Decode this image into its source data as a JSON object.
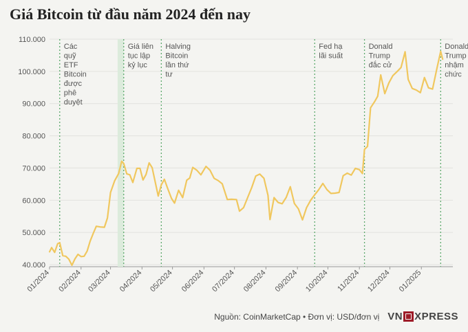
{
  "title": "Giá Bitcoin từ đầu năm 2024 đến nay",
  "footer": {
    "source": "Nguồn: CoinMarketCap • Đơn vị: USD/đơn vị",
    "logo_left": "VN",
    "logo_right": "XPRESS"
  },
  "colors": {
    "line": "#f0c75e",
    "marker": "#5aa86a",
    "band": "#dcebdc",
    "grid": "#e2e2de"
  },
  "chart_data": {
    "type": "line",
    "title": "Giá Bitcoin từ đầu năm 2024 đến nay",
    "ylim": [
      40000,
      110000
    ],
    "y_ticks": [
      40000,
      50000,
      60000,
      70000,
      80000,
      90000,
      100000,
      110000
    ],
    "y_tick_labels": [
      "40.000",
      "50.000",
      "60.000",
      "70.000",
      "80.000",
      "90.000",
      "100.000",
      "110.000"
    ],
    "x_range": [
      "2024-01-01",
      "2025-02-01"
    ],
    "x_ticks": [
      "2024-01-01",
      "2024-02-01",
      "2024-03-01",
      "2024-04-01",
      "2024-05-01",
      "2024-06-01",
      "2024-07-01",
      "2024-08-01",
      "2024-09-01",
      "2024-10-01",
      "2024-11-01",
      "2024-12-01",
      "2025-01-01"
    ],
    "x_tick_labels": [
      "01/2024",
      "02/2024",
      "03/2024",
      "04/2024",
      "05/2024",
      "06/2024",
      "07/2024",
      "08/2024",
      "09/2024",
      "10/2024",
      "11/2024",
      "12/2024",
      "01/2025"
    ],
    "grid": "horizontal",
    "series": [
      {
        "x": [
          "2024-01-01",
          "2024-01-03",
          "2024-01-06",
          "2024-01-09",
          "2024-01-11",
          "2024-01-14",
          "2024-01-17",
          "2024-01-20",
          "2024-01-23",
          "2024-01-26",
          "2024-01-29",
          "2024-02-01",
          "2024-02-04",
          "2024-02-07",
          "2024-02-10",
          "2024-02-13",
          "2024-02-16",
          "2024-02-20",
          "2024-02-24",
          "2024-02-27",
          "2024-03-01",
          "2024-03-05",
          "2024-03-09",
          "2024-03-12",
          "2024-03-14",
          "2024-03-17",
          "2024-03-20",
          "2024-03-23",
          "2024-03-27",
          "2024-03-30",
          "2024-04-02",
          "2024-04-05",
          "2024-04-08",
          "2024-04-11",
          "2024-04-14",
          "2024-04-17",
          "2024-04-20",
          "2024-04-23",
          "2024-04-26",
          "2024-04-30",
          "2024-05-03",
          "2024-05-07",
          "2024-05-11",
          "2024-05-15",
          "2024-05-18",
          "2024-05-21",
          "2024-05-25",
          "2024-05-29",
          "2024-06-03",
          "2024-06-07",
          "2024-06-11",
          "2024-06-15",
          "2024-06-19",
          "2024-06-24",
          "2024-06-28",
          "2024-07-03",
          "2024-07-06",
          "2024-07-10",
          "2024-07-14",
          "2024-07-18",
          "2024-07-22",
          "2024-07-26",
          "2024-07-30",
          "2024-08-03",
          "2024-08-05",
          "2024-08-09",
          "2024-08-13",
          "2024-08-17",
          "2024-08-21",
          "2024-08-25",
          "2024-08-29",
          "2024-09-02",
          "2024-09-06",
          "2024-09-10",
          "2024-09-14",
          "2024-09-18",
          "2024-09-22",
          "2024-09-26",
          "2024-09-30",
          "2024-10-04",
          "2024-10-08",
          "2024-10-12",
          "2024-10-16",
          "2024-10-20",
          "2024-10-24",
          "2024-10-28",
          "2024-11-01",
          "2024-11-04",
          "2024-11-06",
          "2024-11-09",
          "2024-11-12",
          "2024-11-16",
          "2024-11-19",
          "2024-11-22",
          "2024-11-26",
          "2024-11-30",
          "2024-12-04",
          "2024-12-08",
          "2024-12-12",
          "2024-12-16",
          "2024-12-19",
          "2024-12-23",
          "2024-12-27",
          "2024-12-31",
          "2025-01-04",
          "2025-01-08",
          "2025-01-12",
          "2025-01-16",
          "2025-01-20",
          "2025-01-22"
        ],
        "values": [
          44000,
          45300,
          43800,
          46500,
          46800,
          42800,
          42600,
          41700,
          39800,
          41800,
          43200,
          42500,
          42600,
          44200,
          47300,
          49700,
          51900,
          51700,
          51600,
          54500,
          62400,
          66000,
          68300,
          72100,
          71400,
          68200,
          67900,
          65500,
          69900,
          69900,
          66300,
          68000,
          71600,
          70100,
          65700,
          61300,
          64800,
          66500,
          63900,
          60600,
          59100,
          63100,
          60800,
          66200,
          66900,
          70200,
          69300,
          67900,
          70500,
          69300,
          66800,
          66100,
          65100,
          60200,
          60300,
          60200,
          56600,
          57700,
          60800,
          63900,
          67500,
          68100,
          66800,
          61500,
          54000,
          60800,
          59300,
          58900,
          60900,
          64200,
          59000,
          57300,
          53900,
          57700,
          60000,
          61700,
          63300,
          65200,
          63300,
          62100,
          62200,
          62400,
          67600,
          68400,
          67800,
          69900,
          69500,
          68300,
          75800,
          76700,
          88700,
          90600,
          92300,
          98900,
          93100,
          96400,
          98700,
          99900,
          101200,
          106100,
          97500,
          94700,
          94200,
          93400,
          98100,
          94900,
          94500,
          100500,
          106200,
          103800
        ]
      }
    ],
    "annotations": [
      {
        "date": "2024-01-11",
        "text": [
          "Các",
          "quỹ",
          "ETF",
          "Bitcoin",
          "được",
          "phê",
          "duyệt"
        ]
      },
      {
        "date": "2024-03-14",
        "text": [
          "Giá liên",
          "tục lập",
          "kỷ lục"
        ],
        "band_start": "2024-03-08",
        "band_end": "2024-03-14"
      },
      {
        "date": "2024-04-20",
        "text": [
          "Halving",
          "Bitcoin",
          "lần thứ",
          "tư"
        ]
      },
      {
        "date": "2024-09-18",
        "text": [
          "Fed hạ",
          "lãi suất"
        ]
      },
      {
        "date": "2024-11-06",
        "text": [
          "Donald",
          "Trump",
          "đắc cử"
        ]
      },
      {
        "date": "2025-01-20",
        "text": [
          "Donald",
          "Trump",
          "nhậm",
          "chức"
        ]
      }
    ]
  }
}
